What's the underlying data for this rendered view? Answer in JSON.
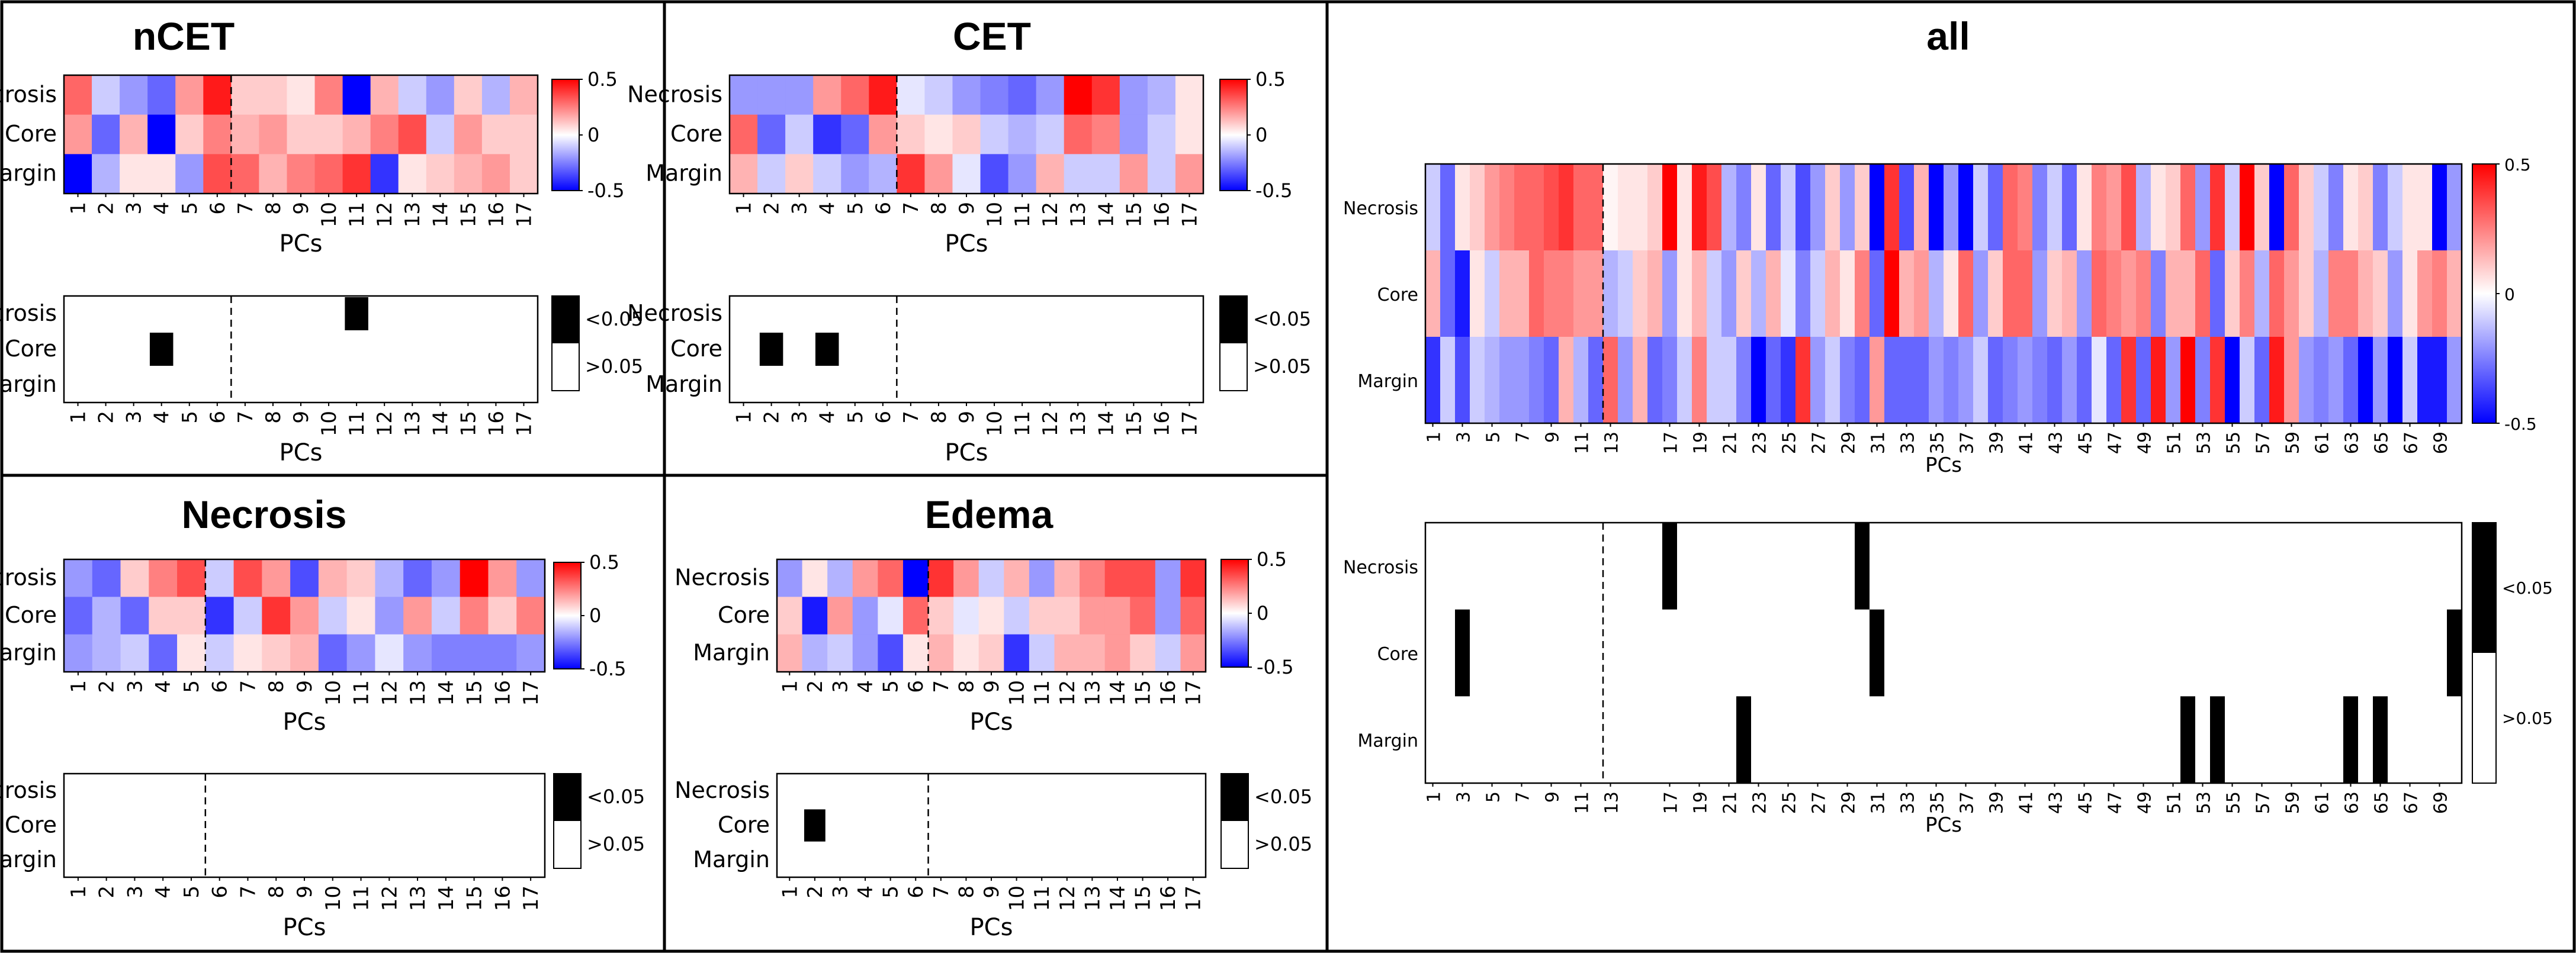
{
  "chart_data": [
    {
      "id": "nCET",
      "title": "nCET",
      "n_pcs": 17,
      "divider_after": 6,
      "rows": [
        "Necrosis",
        "Core",
        "Margin"
      ],
      "xlabel": "PCs",
      "tick_labels": [
        "1",
        "2",
        "3",
        "4",
        "5",
        "6",
        "7",
        "8",
        "9",
        "10",
        "11",
        "12",
        "13",
        "14",
        "15",
        "16",
        "17"
      ],
      "heatmap": {
        "type": "heatmap",
        "vmin": -0.5,
        "vmax": 0.5,
        "colorbar_ticks": [
          "0.5",
          "0",
          "-0.5"
        ],
        "values": [
          [
            0.3,
            -0.1,
            -0.2,
            -0.3,
            0.2,
            0.45,
            0.1,
            0.1,
            0.05,
            0.25,
            -0.6,
            0.15,
            -0.1,
            -0.2,
            0.1,
            -0.15,
            0.15
          ],
          [
            0.2,
            -0.3,
            0.15,
            -0.6,
            0.1,
            0.25,
            0.15,
            0.2,
            0.1,
            0.1,
            0.15,
            0.25,
            0.35,
            -0.1,
            0.2,
            0.1,
            0.1
          ],
          [
            -0.5,
            -0.15,
            0.05,
            0.05,
            -0.2,
            0.35,
            0.3,
            0.15,
            0.25,
            0.3,
            0.4,
            -0.4,
            0.05,
            0.1,
            0.15,
            0.2,
            0.1
          ]
        ]
      },
      "significance": {
        "type": "heatmap",
        "legend": [
          "<0.05",
          ">0.05"
        ],
        "cells": [
          {
            "row": "Necrosis",
            "pc": 11
          },
          {
            "row": "Core",
            "pc": 4
          }
        ]
      }
    },
    {
      "id": "CET",
      "title": "CET",
      "n_pcs": 17,
      "divider_after": 6,
      "rows": [
        "Necrosis",
        "Core",
        "Margin"
      ],
      "xlabel": "PCs",
      "tick_labels": [
        "1",
        "2",
        "3",
        "4",
        "5",
        "6",
        "7",
        "8",
        "9",
        "10",
        "11",
        "12",
        "13",
        "14",
        "15",
        "16",
        "17"
      ],
      "heatmap": {
        "type": "heatmap",
        "vmin": -0.5,
        "vmax": 0.5,
        "colorbar_ticks": [
          "0.5",
          "0",
          "-0.5"
        ],
        "values": [
          [
            -0.2,
            -0.2,
            -0.2,
            0.2,
            0.3,
            0.45,
            -0.05,
            -0.1,
            -0.2,
            -0.25,
            -0.3,
            -0.2,
            0.5,
            0.4,
            -0.2,
            -0.15,
            0.05
          ],
          [
            0.3,
            -0.3,
            -0.1,
            -0.4,
            -0.3,
            0.2,
            0.1,
            0.05,
            0.1,
            -0.1,
            -0.15,
            -0.1,
            0.3,
            0.25,
            -0.2,
            -0.1,
            0.05
          ],
          [
            0.15,
            -0.1,
            0.1,
            -0.1,
            -0.2,
            -0.15,
            0.4,
            0.2,
            -0.05,
            -0.35,
            -0.2,
            0.15,
            -0.1,
            -0.1,
            0.2,
            -0.1,
            0.2
          ]
        ]
      },
      "significance": {
        "type": "heatmap",
        "legend": [
          "<0.05",
          ">0.05"
        ],
        "cells": [
          {
            "row": "Core",
            "pc": 2
          },
          {
            "row": "Core",
            "pc": 4
          }
        ]
      }
    },
    {
      "id": "Necrosis",
      "title": "Necrosis",
      "n_pcs": 17,
      "divider_after": 5,
      "rows": [
        "Necrosis",
        "Core",
        "Margin"
      ],
      "xlabel": "PCs",
      "tick_labels": [
        "1",
        "2",
        "3",
        "4",
        "5",
        "6",
        "7",
        "8",
        "9",
        "10",
        "11",
        "12",
        "13",
        "14",
        "15",
        "16",
        "17"
      ],
      "heatmap": {
        "type": "heatmap",
        "vmin": -0.5,
        "vmax": 0.5,
        "colorbar_ticks": [
          "0.5",
          "0",
          "-0.5"
        ],
        "values": [
          [
            -0.2,
            -0.3,
            0.1,
            0.25,
            0.35,
            -0.1,
            0.35,
            0.2,
            -0.35,
            0.15,
            0.1,
            -0.15,
            -0.3,
            -0.2,
            0.5,
            0.2,
            -0.2
          ],
          [
            -0.3,
            -0.15,
            -0.3,
            0.1,
            0.1,
            -0.4,
            -0.1,
            0.4,
            0.2,
            -0.1,
            0.05,
            -0.2,
            0.2,
            -0.1,
            0.25,
            0.1,
            0.25
          ],
          [
            -0.2,
            -0.15,
            -0.1,
            -0.3,
            0.05,
            -0.1,
            0.05,
            0.1,
            0.15,
            -0.3,
            -0.2,
            -0.05,
            -0.2,
            -0.25,
            -0.25,
            -0.25,
            -0.2
          ]
        ]
      },
      "significance": {
        "type": "heatmap",
        "legend": [
          "<0.05",
          ">0.05"
        ],
        "cells": []
      }
    },
    {
      "id": "Edema",
      "title": "Edema",
      "n_pcs": 17,
      "divider_after": 6,
      "rows": [
        "Necrosis",
        "Core",
        "Margin"
      ],
      "xlabel": "PCs",
      "tick_labels": [
        "1",
        "2",
        "3",
        "4",
        "5",
        "6",
        "7",
        "8",
        "9",
        "10",
        "11",
        "12",
        "13",
        "14",
        "15",
        "16",
        "17"
      ],
      "heatmap": {
        "type": "heatmap",
        "vmin": -0.5,
        "vmax": 0.5,
        "colorbar_ticks": [
          "0.5",
          "0",
          "-0.5"
        ],
        "values": [
          [
            -0.2,
            0.05,
            -0.15,
            0.2,
            0.3,
            -0.55,
            0.4,
            0.2,
            -0.1,
            0.15,
            -0.2,
            0.15,
            0.25,
            0.35,
            0.35,
            -0.2,
            0.4
          ],
          [
            0.1,
            -0.45,
            0.2,
            -0.2,
            -0.05,
            0.3,
            0.1,
            -0.05,
            0.05,
            -0.1,
            0.1,
            0.1,
            0.2,
            0.2,
            0.3,
            -0.2,
            0.3
          ],
          [
            0.15,
            -0.15,
            -0.1,
            -0.2,
            -0.35,
            0.05,
            0.15,
            0.05,
            0.1,
            -0.4,
            -0.1,
            0.15,
            0.15,
            0.2,
            0.1,
            -0.1,
            0.2
          ]
        ]
      },
      "significance": {
        "type": "heatmap",
        "legend": [
          "<0.05",
          ">0.05"
        ],
        "cells": [
          {
            "row": "Core",
            "pc": 2
          }
        ]
      }
    },
    {
      "id": "all",
      "title": "all",
      "n_pcs": 70,
      "divider_after": 12,
      "rows": [
        "Necrosis",
        "Core",
        "Margin"
      ],
      "xlabel": "PCs",
      "tick_labels": [
        "1",
        "3",
        "5",
        "7",
        "9",
        "11",
        "13",
        "17",
        "19",
        "21",
        "23",
        "25",
        "27",
        "29",
        "31",
        "33",
        "35",
        "37",
        "39",
        "41",
        "43",
        "45",
        "47",
        "49",
        "51",
        "53",
        "55",
        "57",
        "59",
        "61",
        "63",
        "65",
        "67",
        "69"
      ],
      "heatmap": {
        "type": "heatmap",
        "vmin": -0.5,
        "vmax": 0.5,
        "colorbar_ticks": [
          "0.5",
          "0",
          "-0.5"
        ],
        "values": [
          [
            -0.1,
            -0.3,
            0.05,
            0.1,
            0.2,
            0.25,
            0.3,
            0.3,
            0.35,
            0.4,
            0.3,
            0.3,
            0.02,
            0.05,
            0.05,
            0.1,
            0.5,
            0.05,
            0.45,
            0.35,
            -0.15,
            -0.25,
            0.05,
            -0.3,
            -0.1,
            -0.35,
            -0.2,
            0.1,
            -0.2,
            0.1,
            -0.6,
            0.4,
            -0.35,
            0.15,
            -0.5,
            -0.2,
            -0.55,
            -0.1,
            -0.3,
            0.3,
            0.25,
            -0.25,
            -0.1,
            -0.3,
            0.05,
            0.25,
            0.2,
            0.35,
            -0.15,
            0.05,
            0.1,
            0.3,
            -0.2,
            0.4,
            -0.1,
            0.5,
            0.1,
            -0.6,
            0.3,
            0.1,
            -0.1,
            -0.25,
            0.05,
            0.1,
            -0.25,
            -0.1,
            0.05,
            0.05,
            -0.55,
            -0.2
          ],
          [
            0.15,
            -0.3,
            -0.45,
            0.05,
            -0.1,
            0.15,
            0.15,
            0.3,
            0.25,
            0.25,
            0.2,
            0.2,
            -0.15,
            -0.1,
            0.1,
            0.15,
            -0.2,
            0.05,
            0.15,
            -0.1,
            -0.2,
            0.1,
            -0.15,
            0.15,
            -0.05,
            -0.25,
            -0.1,
            0.15,
            0.05,
            0.25,
            -0.3,
            0.5,
            0.15,
            0.2,
            -0.15,
            0.05,
            0.3,
            -0.2,
            0.1,
            0.3,
            0.3,
            -0.2,
            0.1,
            0.15,
            -0.2,
            0.3,
            0.25,
            0.2,
            0.25,
            -0.25,
            0.15,
            0.15,
            0.3,
            -0.3,
            0.1,
            0.25,
            -0.15,
            0.3,
            0.2,
            0.1,
            -0.15,
            0.25,
            0.25,
            0.15,
            0.1,
            -0.2,
            0.05,
            0.2,
            0.25,
            0.15
          ],
          [
            -0.4,
            -0.1,
            -0.35,
            -0.1,
            -0.15,
            -0.2,
            -0.2,
            -0.25,
            -0.3,
            0.15,
            -0.15,
            -0.3,
            0.3,
            -0.2,
            0.15,
            -0.3,
            -0.25,
            -0.1,
            0.25,
            -0.1,
            -0.1,
            -0.25,
            -0.55,
            -0.3,
            -0.4,
            0.4,
            -0.2,
            -0.1,
            -0.25,
            -0.3,
            0.2,
            -0.3,
            -0.3,
            -0.3,
            -0.2,
            -0.25,
            -0.2,
            -0.1,
            -0.3,
            -0.25,
            -0.2,
            -0.25,
            -0.3,
            -0.2,
            -0.3,
            -0.05,
            -0.3,
            0.4,
            -0.3,
            0.45,
            -0.2,
            0.5,
            -0.25,
            0.4,
            -0.55,
            -0.1,
            -0.3,
            0.45,
            0.2,
            -0.2,
            -0.25,
            -0.2,
            -0.3,
            -0.5,
            -0.2,
            -0.55,
            -0.1,
            -0.45,
            -0.45,
            -0.2
          ]
        ]
      },
      "significance": {
        "type": "heatmap",
        "legend": [
          "<0.05",
          ">0.05"
        ],
        "cells": [
          {
            "row": "Necrosis",
            "pc": 17
          },
          {
            "row": "Necrosis",
            "pc": 30
          },
          {
            "row": "Core",
            "pc": 3
          },
          {
            "row": "Core",
            "pc": 31
          },
          {
            "row": "Core",
            "pc": 70
          },
          {
            "row": "Margin",
            "pc": 22
          },
          {
            "row": "Margin",
            "pc": 52
          },
          {
            "row": "Margin",
            "pc": 54
          },
          {
            "row": "Margin",
            "pc": 63
          },
          {
            "row": "Margin",
            "pc": 65
          }
        ]
      }
    }
  ]
}
